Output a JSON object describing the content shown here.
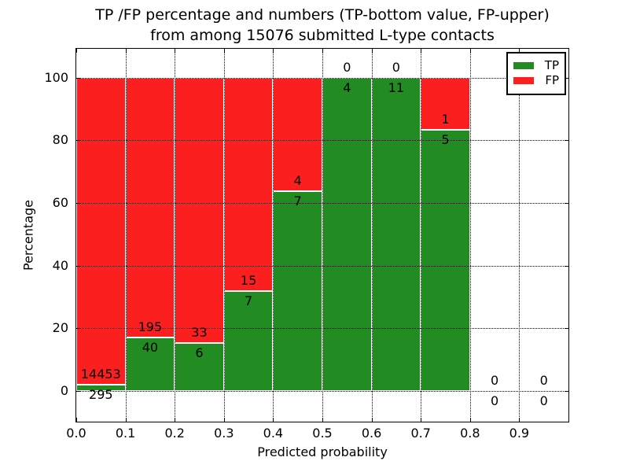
{
  "figure": {
    "title_line1": "TP /FP percentage and numbers (TP-bottom value, FP-upper)",
    "title_line2": "from among 15076 submitted L-type contacts",
    "xlabel": "Predicted probability",
    "ylabel": "Percentage"
  },
  "legend": {
    "entries": [
      {
        "label": "TP",
        "color": "#228b22"
      },
      {
        "label": "FP",
        "color": "#fc1f1f"
      }
    ]
  },
  "chart_data": {
    "type": "bar",
    "stacked": true,
    "normalized_to_percent": true,
    "title": "TP /FP percentage and numbers (TP-bottom value, FP-upper) from among 15076 submitted L-type contacts",
    "xlabel": "Predicted probability",
    "ylabel": "Percentage",
    "xlim": [
      0.0,
      1.0
    ],
    "ylim": [
      -10,
      110
    ],
    "x_tick_labels": [
      "0.0",
      "0.1",
      "0.2",
      "0.3",
      "0.4",
      "0.5",
      "0.6",
      "0.7",
      "0.8",
      "0.9"
    ],
    "y_tick_values": [
      0,
      20,
      40,
      60,
      80,
      100
    ],
    "grid": "dotted black, drawn on top of bars",
    "legend_position": "upper right",
    "bin_width": 0.1,
    "bin_starts": [
      0.0,
      0.1,
      0.2,
      0.3,
      0.4,
      0.5,
      0.6,
      0.7,
      0.8,
      0.9
    ],
    "series": [
      {
        "name": "TP",
        "color": "#228b22",
        "counts": [
          295,
          40,
          6,
          7,
          7,
          4,
          11,
          5,
          0,
          0
        ]
      },
      {
        "name": "FP",
        "color": "#fc1f1f",
        "counts": [
          14453,
          195,
          33,
          15,
          4,
          0,
          0,
          1,
          0,
          0
        ]
      }
    ],
    "tp_percent_of_bin": [
      2.0,
      17.0,
      15.4,
      31.8,
      63.6,
      100.0,
      100.0,
      83.3,
      null,
      null
    ],
    "total_submitted": 15076
  }
}
